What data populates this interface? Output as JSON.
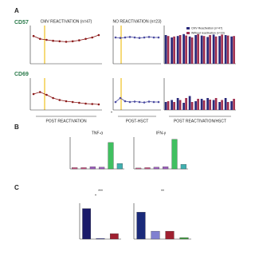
{
  "labels": {
    "panel_a": "A",
    "panel_b": "B",
    "panel_c": "C",
    "row_1": "CD57",
    "row_2": "CD69",
    "post_reactivation": "POST REACTIVATION",
    "post_hsct": "POST-HSCT",
    "post_both": "POST REACTIVATION/HSCT",
    "sig_b": "*",
    "sig_c1": "*",
    "sig_c2": "***",
    "sig_c3": "**"
  },
  "chart_data": [
    {
      "type": "line",
      "title": "CMV REACTIVATION (n=47)",
      "ylim": [
        0,
        80
      ],
      "series": [
        {
          "color": "#8b1a1a",
          "values": [
            58,
            52,
            50,
            48,
            47,
            46,
            47,
            49,
            52,
            55,
            60
          ]
        }
      ]
    },
    {
      "type": "line",
      "title": "NO REACTIVATION (n=23)",
      "ylim": [
        0,
        80
      ],
      "series": [
        {
          "color": "#4a4aa0",
          "values": [
            55,
            54,
            55,
            56,
            55,
            54,
            55,
            56,
            55,
            55
          ]
        }
      ]
    },
    {
      "type": "bar",
      "ylim": [
        0,
        80
      ],
      "series": [
        {
          "name": "CMV Reactivation (n=47)",
          "color": "#2a2a7a",
          "values": [
            60,
            55,
            58,
            62,
            57,
            60,
            59,
            56,
            61,
            58,
            60,
            57
          ]
        },
        {
          "name": "Without reactivation (n=23)",
          "color": "#a03050",
          "values": [
            58,
            57,
            60,
            59,
            55,
            62,
            58,
            60,
            57,
            61,
            59,
            58
          ]
        }
      ]
    },
    {
      "type": "line",
      "ylim": [
        0,
        80
      ],
      "series": [
        {
          "color": "#8b1a1a",
          "values": [
            40,
            45,
            38,
            30,
            25,
            22,
            20,
            18,
            16,
            15,
            14
          ]
        }
      ]
    },
    {
      "type": "line",
      "ylim": [
        0,
        80
      ],
      "series": [
        {
          "color": "#4a4aa0",
          "values": [
            20,
            30,
            22,
            20,
            21,
            20,
            19,
            21,
            20,
            20
          ]
        }
      ]
    },
    {
      "type": "bar",
      "ylim": [
        0,
        80
      ],
      "series": [
        {
          "color": "#2a2a7a",
          "values": [
            20,
            25,
            30,
            18,
            35,
            22,
            28,
            30,
            25,
            20,
            30,
            22
          ]
        },
        {
          "color": "#a03050",
          "values": [
            22,
            20,
            25,
            30,
            20,
            28,
            24,
            26,
            30,
            25,
            20,
            28
          ]
        }
      ]
    },
    {
      "type": "bar",
      "title": "TNF-α",
      "ylim": [
        0,
        70
      ],
      "values": [
        3,
        3,
        5,
        4,
        58,
        12
      ],
      "colors": [
        "#d05a8a",
        "#d05a8a",
        "#a060c0",
        "#a060c0",
        "#40c060",
        "#40b0b0"
      ]
    },
    {
      "type": "bar",
      "title": "IFN-γ",
      "ylim": [
        0,
        70
      ],
      "values": [
        2,
        3,
        4,
        5,
        65,
        10
      ],
      "colors": [
        "#d05a8a",
        "#d05a8a",
        "#a060c0",
        "#a060c0",
        "#40c060",
        "#40b0b0"
      ]
    },
    {
      "type": "bar",
      "ylim": [
        0,
        100
      ],
      "values": [
        85,
        2,
        15
      ],
      "colors": [
        "#1a1a6a",
        "#6060c0",
        "#a02030"
      ]
    },
    {
      "type": "bar",
      "ylim": [
        0,
        100
      ],
      "values": [
        75,
        22,
        22,
        4
      ],
      "colors": [
        "#1a2a7a",
        "#8080d0",
        "#a02030",
        "#40a040"
      ]
    }
  ]
}
